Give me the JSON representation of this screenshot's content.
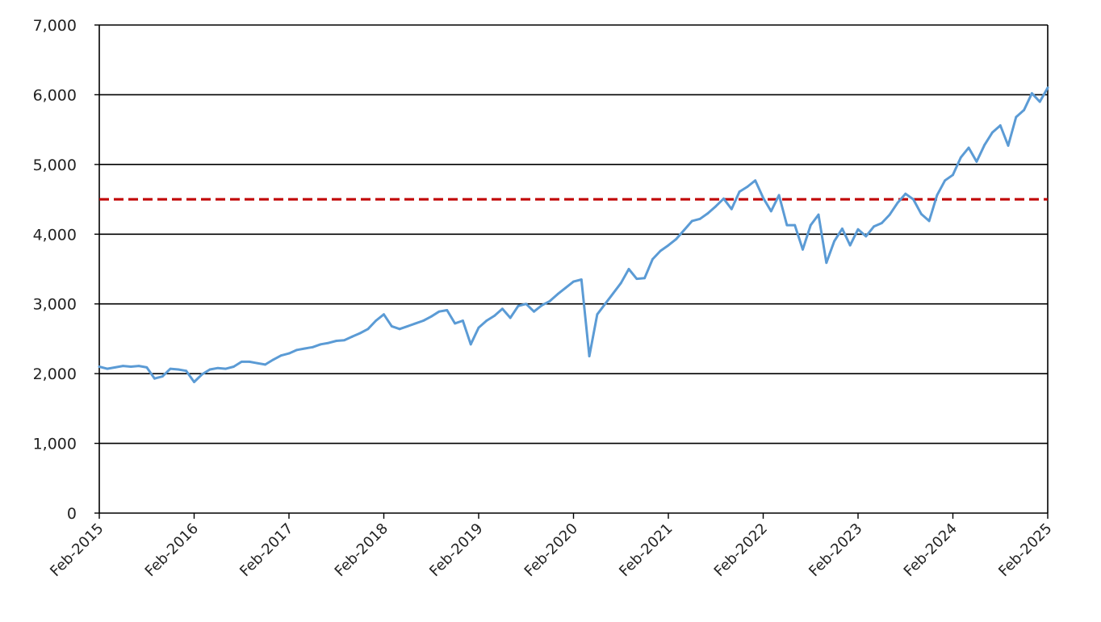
{
  "chart_data": {
    "type": "line",
    "title": "",
    "xlabel": "",
    "ylabel": "",
    "ylim": [
      0,
      7000
    ],
    "xlim": [
      "2015-02",
      "2025-02"
    ],
    "y_ticks": [
      0,
      1000,
      2000,
      3000,
      4000,
      5000,
      6000,
      7000
    ],
    "y_tick_labels": [
      "0",
      "1,000",
      "2,000",
      "3,000",
      "4,000",
      "5,000",
      "6,000",
      "7,000"
    ],
    "x_ticks": [
      "2015-02",
      "2016-02",
      "2017-02",
      "2018-02",
      "2019-02",
      "2020-02",
      "2021-02",
      "2022-02",
      "2023-02",
      "2024-02",
      "2025-02"
    ],
    "x_tick_labels": [
      "Feb-2015",
      "Feb-2016",
      "Feb-2017",
      "Feb-2018",
      "Feb-2019",
      "Feb-2020",
      "Feb-2021",
      "Feb-2022",
      "Feb-2023",
      "Feb-2024",
      "Feb-2025"
    ],
    "grid": "horizontal",
    "legend": "none",
    "colors": {
      "series": "#5b9bd5",
      "reference": "#c00000",
      "grid": "#000000"
    },
    "series": [
      {
        "points": [
          [
            "2015-02",
            2100
          ],
          [
            "2015-03",
            2070
          ],
          [
            "2015-04",
            2090
          ],
          [
            "2015-05",
            2110
          ],
          [
            "2015-06",
            2100
          ],
          [
            "2015-07",
            2110
          ],
          [
            "2015-08",
            2090
          ],
          [
            "2015-09",
            1930
          ],
          [
            "2015-10",
            1960
          ],
          [
            "2015-11",
            2070
          ],
          [
            "2015-12",
            2060
          ],
          [
            "2016-01",
            2040
          ],
          [
            "2016-02",
            1880
          ],
          [
            "2016-03",
            1990
          ],
          [
            "2016-04",
            2060
          ],
          [
            "2016-05",
            2080
          ],
          [
            "2016-06",
            2070
          ],
          [
            "2016-07",
            2100
          ],
          [
            "2016-08",
            2170
          ],
          [
            "2016-09",
            2170
          ],
          [
            "2016-10",
            2150
          ],
          [
            "2016-11",
            2130
          ],
          [
            "2016-12",
            2200
          ],
          [
            "2017-01",
            2260
          ],
          [
            "2017-02",
            2290
          ],
          [
            "2017-03",
            2340
          ],
          [
            "2017-04",
            2360
          ],
          [
            "2017-05",
            2380
          ],
          [
            "2017-06",
            2420
          ],
          [
            "2017-07",
            2440
          ],
          [
            "2017-08",
            2470
          ],
          [
            "2017-09",
            2480
          ],
          [
            "2017-10",
            2530
          ],
          [
            "2017-11",
            2580
          ],
          [
            "2017-12",
            2640
          ],
          [
            "2018-01",
            2760
          ],
          [
            "2018-02",
            2850
          ],
          [
            "2018-03",
            2680
          ],
          [
            "2018-04",
            2640
          ],
          [
            "2018-05",
            2680
          ],
          [
            "2018-06",
            2720
          ],
          [
            "2018-07",
            2760
          ],
          [
            "2018-08",
            2820
          ],
          [
            "2018-09",
            2890
          ],
          [
            "2018-10",
            2910
          ],
          [
            "2018-11",
            2720
          ],
          [
            "2018-12",
            2760
          ],
          [
            "2019-01",
            2420
          ],
          [
            "2019-02",
            2660
          ],
          [
            "2019-03",
            2760
          ],
          [
            "2019-04",
            2830
          ],
          [
            "2019-05",
            2930
          ],
          [
            "2019-06",
            2800
          ],
          [
            "2019-07",
            2970
          ],
          [
            "2019-08",
            3000
          ],
          [
            "2019-09",
            2890
          ],
          [
            "2019-10",
            2980
          ],
          [
            "2019-11",
            3040
          ],
          [
            "2019-12",
            3140
          ],
          [
            "2020-01",
            3230
          ],
          [
            "2020-02",
            3320
          ],
          [
            "2020-03",
            3350
          ],
          [
            "2020-04",
            2250
          ],
          [
            "2020-05",
            2850
          ],
          [
            "2020-06",
            3000
          ],
          [
            "2020-07",
            3150
          ],
          [
            "2020-08",
            3300
          ],
          [
            "2020-09",
            3500
          ],
          [
            "2020-10",
            3360
          ],
          [
            "2020-11",
            3370
          ],
          [
            "2020-12",
            3640
          ],
          [
            "2021-01",
            3760
          ],
          [
            "2021-02",
            3840
          ],
          [
            "2021-03",
            3930
          ],
          [
            "2021-04",
            4060
          ],
          [
            "2021-05",
            4190
          ],
          [
            "2021-06",
            4220
          ],
          [
            "2021-07",
            4300
          ],
          [
            "2021-08",
            4400
          ],
          [
            "2021-09",
            4510
          ],
          [
            "2021-10",
            4360
          ],
          [
            "2021-11",
            4610
          ],
          [
            "2021-12",
            4680
          ],
          [
            "2022-01",
            4770
          ],
          [
            "2022-02",
            4520
          ],
          [
            "2022-03",
            4330
          ],
          [
            "2022-04",
            4560
          ],
          [
            "2022-05",
            4130
          ],
          [
            "2022-06",
            4130
          ],
          [
            "2022-07",
            3780
          ],
          [
            "2022-08",
            4130
          ],
          [
            "2022-09",
            4280
          ],
          [
            "2022-10",
            3590
          ],
          [
            "2022-11",
            3900
          ],
          [
            "2022-12",
            4080
          ],
          [
            "2023-01",
            3840
          ],
          [
            "2023-02",
            4070
          ],
          [
            "2023-03",
            3970
          ],
          [
            "2023-04",
            4110
          ],
          [
            "2023-05",
            4160
          ],
          [
            "2023-06",
            4280
          ],
          [
            "2023-07",
            4450
          ],
          [
            "2023-08",
            4580
          ],
          [
            "2023-09",
            4500
          ],
          [
            "2023-10",
            4290
          ],
          [
            "2023-11",
            4190
          ],
          [
            "2023-12",
            4560
          ],
          [
            "2024-01",
            4770
          ],
          [
            "2024-02",
            4850
          ],
          [
            "2024-03",
            5100
          ],
          [
            "2024-04",
            5240
          ],
          [
            "2024-05",
            5040
          ],
          [
            "2024-06",
            5280
          ],
          [
            "2024-07",
            5460
          ],
          [
            "2024-08",
            5560
          ],
          [
            "2024-09",
            5270
          ],
          [
            "2024-10",
            5680
          ],
          [
            "2024-11",
            5780
          ],
          [
            "2024-12",
            6020
          ],
          [
            "2025-01",
            5900
          ],
          [
            "2025-02",
            6100
          ]
        ]
      }
    ],
    "reference_line": {
      "y": 4500,
      "style": "dashed"
    }
  }
}
